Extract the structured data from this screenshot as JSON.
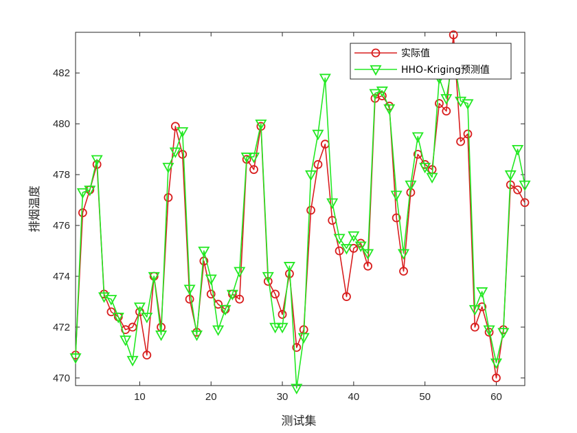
{
  "chart_data": {
    "type": "line",
    "title": "",
    "xlabel": "测试集",
    "ylabel": "排烟温度",
    "xlim": [
      1,
      64
    ],
    "ylim": [
      469.7,
      483.6
    ],
    "xticks": [
      10,
      20,
      30,
      40,
      50,
      60
    ],
    "yticks": [
      470,
      472,
      474,
      476,
      478,
      480,
      482
    ],
    "grid": false,
    "legend_position": "top-right",
    "x": [
      1,
      2,
      3,
      4,
      5,
      6,
      7,
      8,
      9,
      10,
      11,
      12,
      13,
      14,
      15,
      16,
      17,
      18,
      19,
      20,
      21,
      22,
      23,
      24,
      25,
      26,
      27,
      28,
      29,
      30,
      31,
      32,
      33,
      34,
      35,
      36,
      37,
      38,
      39,
      40,
      41,
      42,
      43,
      44,
      45,
      46,
      47,
      48,
      49,
      50,
      51,
      52,
      53,
      54,
      55,
      56,
      57,
      58,
      59,
      60,
      61,
      62,
      63,
      64
    ],
    "series": [
      {
        "name": "实际值",
        "color": "#d81e1e",
        "marker": "circle",
        "values": [
          470.9,
          476.5,
          477.4,
          478.4,
          473.3,
          472.6,
          472.4,
          471.9,
          472.0,
          472.6,
          470.9,
          474.0,
          472.0,
          477.1,
          479.9,
          478.8,
          473.1,
          471.8,
          474.6,
          473.3,
          472.9,
          472.7,
          473.3,
          473.1,
          478.6,
          478.2,
          479.9,
          473.8,
          473.3,
          472.5,
          474.1,
          471.2,
          471.9,
          476.6,
          478.4,
          479.2,
          476.2,
          475.0,
          473.2,
          475.1,
          475.3,
          474.4,
          481.0,
          481.1,
          480.7,
          476.3,
          474.2,
          477.3,
          478.8,
          478.4,
          478.2,
          480.8,
          480.5,
          483.5,
          479.3,
          479.6,
          472.0,
          472.8,
          471.8,
          470.0,
          471.9,
          477.6,
          477.4,
          476.9
        ]
      },
      {
        "name": "HHO-Kriging预测值",
        "color": "#22e822",
        "marker": "triangle-down",
        "values": [
          470.8,
          477.3,
          477.4,
          478.6,
          473.2,
          473.1,
          472.4,
          471.5,
          470.7,
          472.8,
          472.4,
          474.0,
          471.7,
          478.3,
          478.9,
          479.7,
          473.5,
          471.7,
          475.0,
          473.9,
          471.9,
          472.7,
          473.3,
          474.2,
          478.7,
          478.7,
          480.0,
          474.0,
          472.0,
          472.0,
          474.4,
          469.6,
          471.6,
          478.0,
          479.6,
          481.8,
          476.9,
          475.5,
          475.1,
          475.6,
          475.2,
          474.9,
          481.2,
          481.3,
          480.6,
          477.2,
          474.9,
          477.6,
          479.5,
          478.3,
          477.9,
          481.8,
          481.0,
          482.7,
          480.9,
          480.8,
          472.7,
          473.4,
          471.9,
          470.6,
          471.8,
          478.0,
          479.0,
          477.6
        ]
      }
    ]
  }
}
